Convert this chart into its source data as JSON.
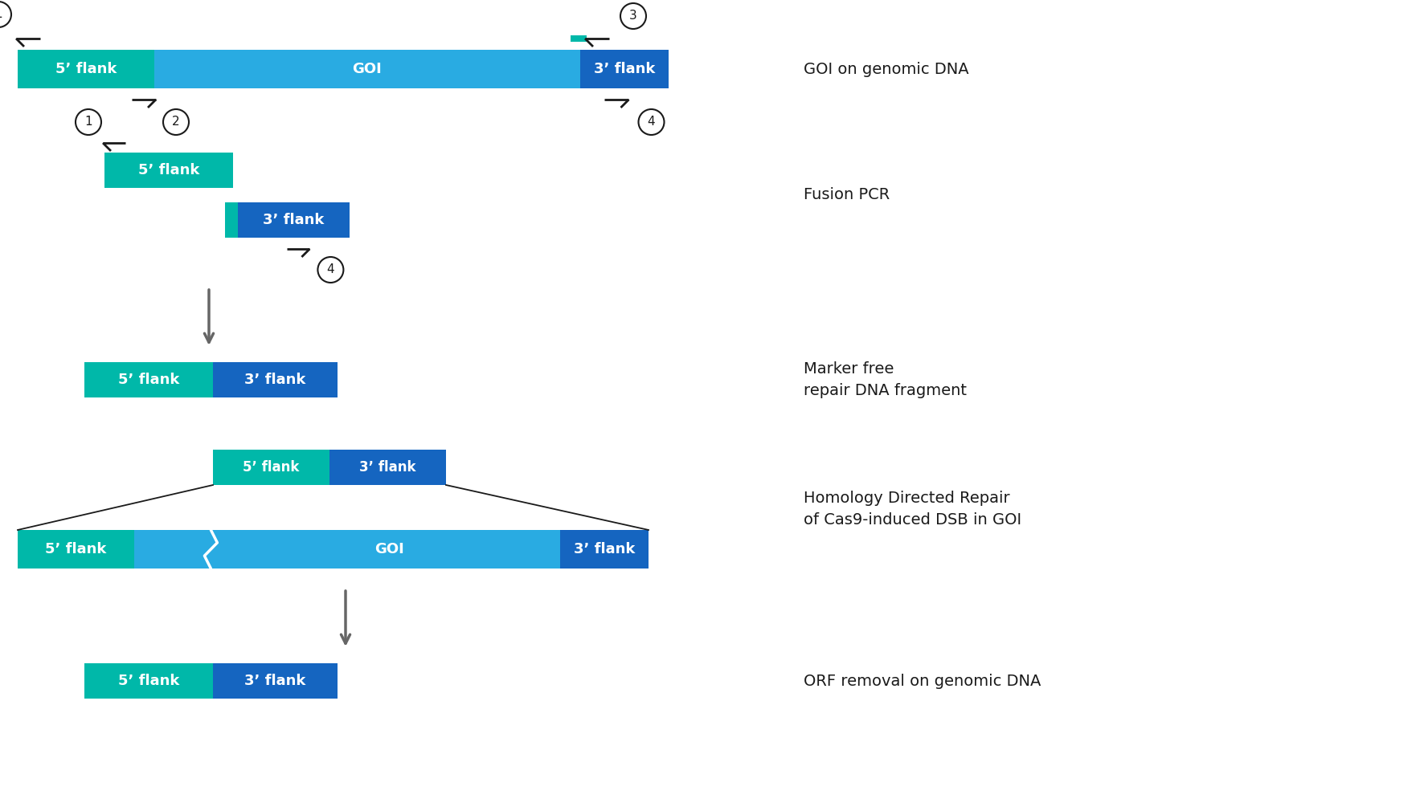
{
  "colors": {
    "teal": "#00B8A9",
    "blue": "#29ABE2",
    "dark_blue": "#1565C0",
    "arrow_gray": "#666666",
    "text_white": "#FFFFFF",
    "text_black": "#1a1a1a",
    "bg": "#FFFFFF"
  },
  "label_5flank": "5’ flank",
  "label_3flank": "3’ flank",
  "label_GOI": "GOI",
  "font_size_bar": 13,
  "font_size_label": 14,
  "font_size_number": 11
}
